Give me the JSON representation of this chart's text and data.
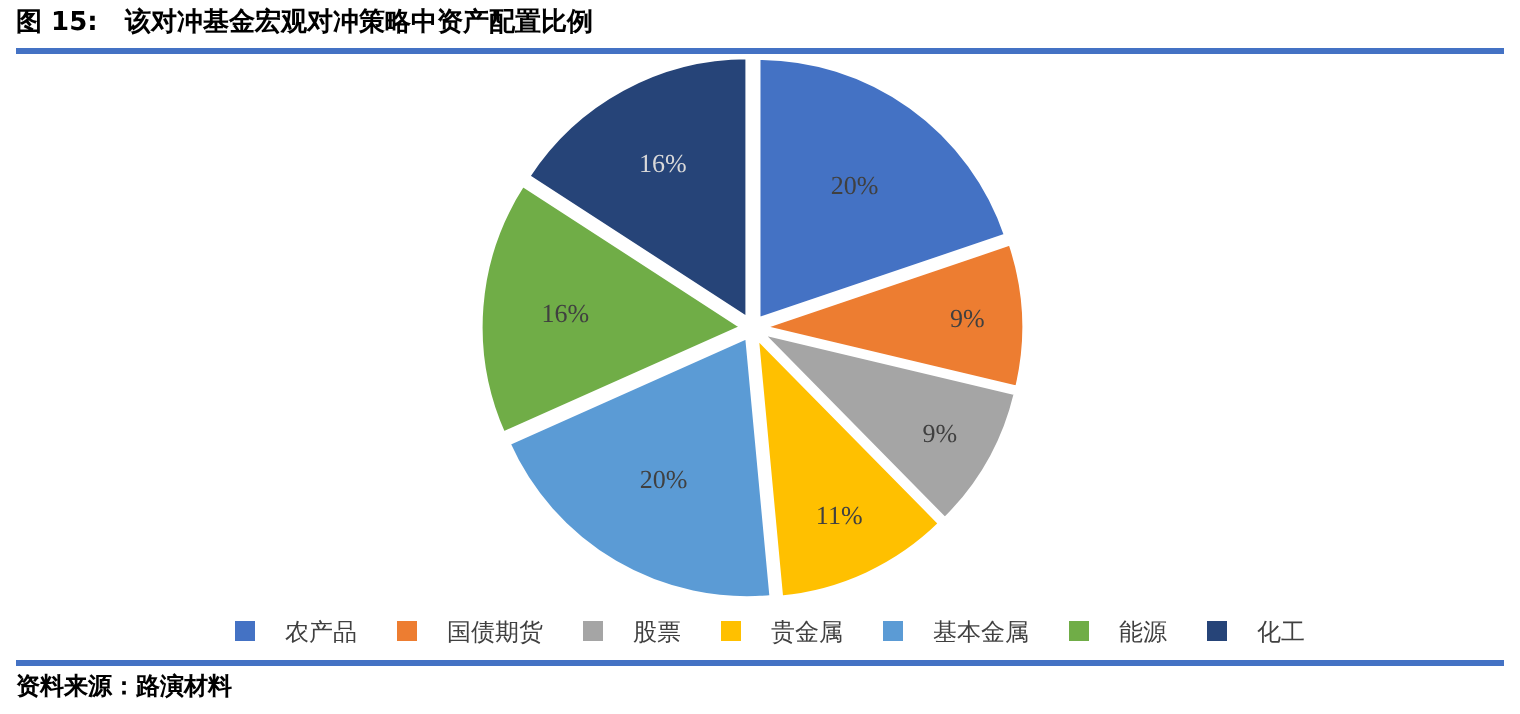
{
  "chart_data": {
    "type": "pie",
    "title": "图 15:   该对冲基金宏观对冲策略中资产配置比例",
    "categories": [
      "农产品",
      "国债期货",
      "股票",
      "贵金属",
      "基本金属",
      "能源",
      "化工"
    ],
    "values": [
      20,
      9,
      9,
      11,
      20,
      16,
      16
    ],
    "value_labels": [
      "20%",
      "9%",
      "9%",
      "11%",
      "20%",
      "16%",
      "16%"
    ],
    "colors": [
      "#4472c4",
      "#ed7d31",
      "#a5a5a5",
      "#ffc000",
      "#5b9bd5",
      "#70ad47",
      "#264478"
    ],
    "legend": "bottom",
    "annotations": [
      "资料来源：路演材料"
    ]
  }
}
